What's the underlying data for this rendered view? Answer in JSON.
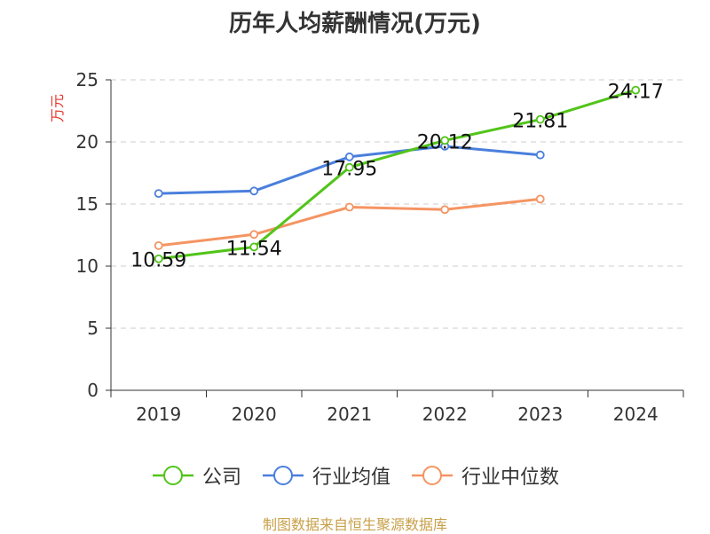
{
  "chart_data": {
    "type": "line",
    "title": "历年人均薪酬情况(万元)",
    "ylabel": "万元",
    "xlabel": "",
    "categories": [
      "2019",
      "2020",
      "2021",
      "2022",
      "2023",
      "2024"
    ],
    "ylim": [
      0,
      25
    ],
    "yticks": [
      "0",
      "5",
      "10",
      "15",
      "20",
      "25"
    ],
    "grid": true,
    "legend_position": "bottom",
    "series": [
      {
        "name": "公司",
        "color": "#52c41a",
        "values": [
          10.59,
          11.54,
          17.95,
          20.12,
          21.81,
          24.17
        ],
        "labels": [
          "10.59",
          "11.54",
          "17.95",
          "20.12",
          "21.81",
          "24.17"
        ]
      },
      {
        "name": "行业均值",
        "color": "#4a7fdc",
        "values": [
          15.85,
          16.05,
          18.8,
          19.65,
          18.95,
          null
        ]
      },
      {
        "name": "行业中位数",
        "color": "#f59462",
        "values": [
          11.65,
          12.55,
          14.75,
          14.55,
          15.4,
          null
        ]
      }
    ]
  },
  "source_text": "制图数据来自恒生聚源数据库",
  "colors": {
    "axis": "#333333",
    "grid": "#cccccc",
    "ylabel": "#e5362d",
    "source": "#c8a04a"
  }
}
